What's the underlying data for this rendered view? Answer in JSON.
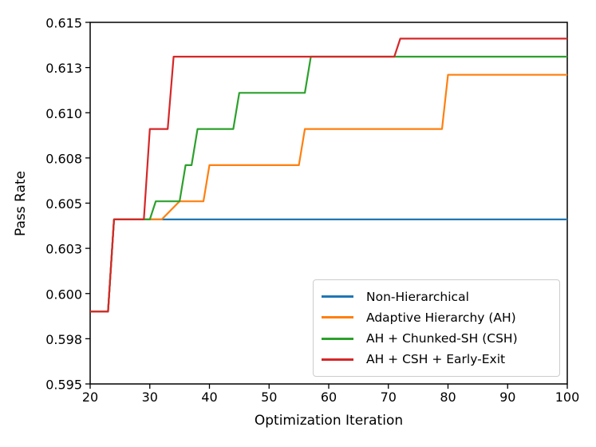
{
  "chart_data": {
    "type": "line",
    "title": "",
    "xlabel": "Optimization Iteration",
    "ylabel": "Pass Rate",
    "xlim": [
      20,
      100
    ],
    "ylim": [
      0.595,
      0.615
    ],
    "grid": false,
    "legend_location": "lower right",
    "x_ticks": [
      20,
      30,
      40,
      50,
      60,
      70,
      80,
      90,
      100
    ],
    "x_tick_labels": [
      "20",
      "30",
      "40",
      "50",
      "60",
      "70",
      "80",
      "90",
      "100"
    ],
    "y_ticks": [
      0.595,
      0.5975,
      0.6,
      0.6025,
      0.605,
      0.6075,
      0.61,
      0.6125,
      0.615
    ],
    "y_tick_labels": [
      "0.595",
      "0.598",
      "0.600",
      "0.603",
      "0.605",
      "0.608",
      "0.610",
      "0.613",
      "0.615"
    ],
    "series": [
      {
        "name": "Non-Hierarchical",
        "color": "#1f77b4",
        "points": [
          [
            20,
            0.599
          ],
          [
            23,
            0.599
          ],
          [
            24,
            0.6041
          ],
          [
            100,
            0.6041
          ]
        ]
      },
      {
        "name": "Adaptive Hierarchy (AH)",
        "color": "#ff7f0e",
        "points": [
          [
            20,
            0.599
          ],
          [
            23,
            0.599
          ],
          [
            24,
            0.6041
          ],
          [
            32,
            0.6041
          ],
          [
            35,
            0.6051
          ],
          [
            39,
            0.6051
          ],
          [
            40,
            0.6071
          ],
          [
            55,
            0.6071
          ],
          [
            56,
            0.6091
          ],
          [
            79,
            0.6091
          ],
          [
            80,
            0.6121
          ],
          [
            100,
            0.6121
          ]
        ]
      },
      {
        "name": "AH + Chunked-SH (CSH)",
        "color": "#2ca02c",
        "points": [
          [
            20,
            0.599
          ],
          [
            23,
            0.599
          ],
          [
            24,
            0.6041
          ],
          [
            30,
            0.6041
          ],
          [
            31,
            0.6051
          ],
          [
            35,
            0.6051
          ],
          [
            36,
            0.6071
          ],
          [
            37,
            0.6071
          ],
          [
            38,
            0.6091
          ],
          [
            44,
            0.6091
          ],
          [
            45,
            0.6111
          ],
          [
            56,
            0.6111
          ],
          [
            57,
            0.6131
          ],
          [
            100,
            0.6131
          ]
        ]
      },
      {
        "name": "AH + CSH + Early-Exit",
        "color": "#d62728",
        "points": [
          [
            20,
            0.599
          ],
          [
            23,
            0.599
          ],
          [
            24,
            0.6041
          ],
          [
            29,
            0.6041
          ],
          [
            30,
            0.6091
          ],
          [
            33,
            0.6091
          ],
          [
            34,
            0.6131
          ],
          [
            71,
            0.6131
          ],
          [
            72,
            0.6141
          ],
          [
            100,
            0.6141
          ]
        ]
      }
    ],
    "colors": {
      "background": "#ffffff",
      "axis": "#000000",
      "legend_border": "#cccccc"
    }
  }
}
